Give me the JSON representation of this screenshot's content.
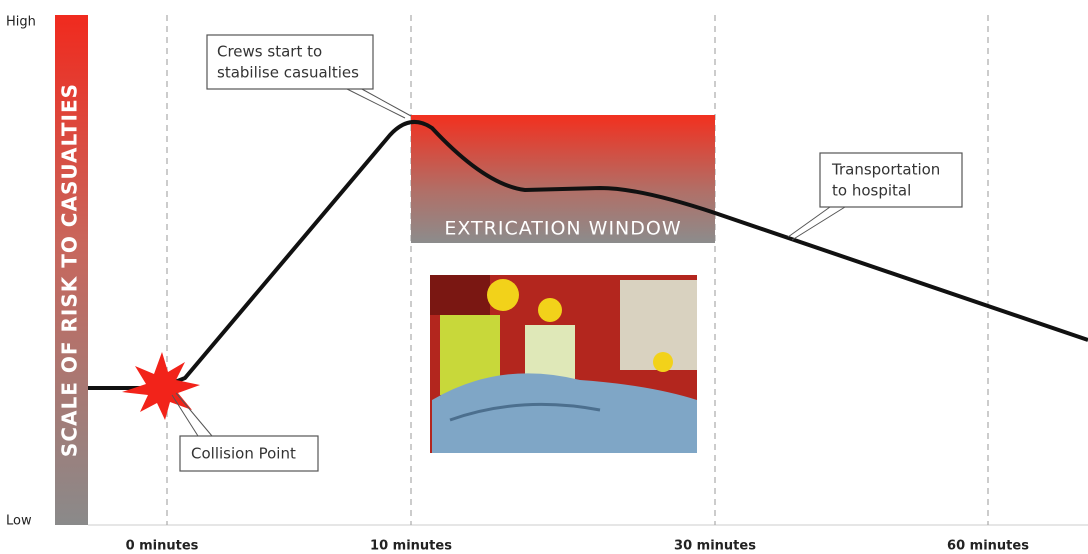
{
  "axis": {
    "high": "High",
    "low": "Low",
    "title": "SCALE OF RISK TO CASUALTIES"
  },
  "time_labels": [
    "0 minutes",
    "10 minutes",
    "30 minutes",
    "60 minutes"
  ],
  "window": {
    "label": "EXTRICATION WINDOW"
  },
  "callouts": [
    {
      "lines": [
        "Crews start to",
        "stabilise casualties"
      ]
    },
    {
      "lines": [
        "Transportation",
        "to hospital"
      ]
    },
    {
      "lines": [
        "Collision Point"
      ]
    }
  ]
}
